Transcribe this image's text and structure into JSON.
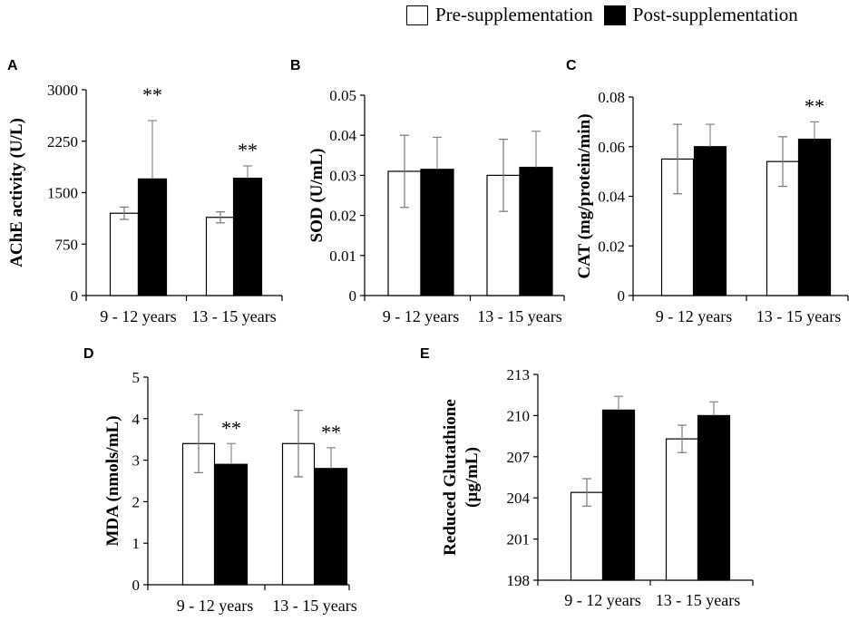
{
  "legend": {
    "pre_label": "Pre-supplementation",
    "post_label": "Post-supplementation",
    "pre_color": "#ffffff",
    "post_color": "#000000"
  },
  "panels": {
    "A": "A",
    "B": "B",
    "C": "C",
    "D": "D",
    "E": "E"
  },
  "chart_data": [
    {
      "panel": "A",
      "type": "bar",
      "ylabel": "AChE activity (U/L)",
      "categories": [
        "9 - 12 years",
        "13 - 15 years"
      ],
      "ylim": [
        0,
        3000
      ],
      "yticks": [
        "0",
        "750",
        "1500",
        "2250",
        "3000"
      ],
      "series": [
        {
          "name": "Pre-supplementation",
          "values": [
            1200,
            1140
          ],
          "errors": [
            90,
            80
          ]
        },
        {
          "name": "Post-supplementation",
          "values": [
            1700,
            1710
          ],
          "errors": [
            850,
            180
          ]
        }
      ],
      "significance": [
        {
          "category": 0,
          "series": 1,
          "label": "**"
        },
        {
          "category": 1,
          "series": 1,
          "label": "**"
        }
      ]
    },
    {
      "panel": "B",
      "type": "bar",
      "ylabel": "SOD (U/mL)",
      "categories": [
        "9 - 12 years",
        "13 - 15 years"
      ],
      "ylim": [
        0,
        0.05
      ],
      "yticks": [
        "0",
        "0.01",
        "0.02",
        "0.03",
        "0.04",
        "0.05"
      ],
      "series": [
        {
          "name": "Pre-supplementation",
          "values": [
            0.031,
            0.03
          ],
          "errors": [
            0.009,
            0.009
          ]
        },
        {
          "name": "Post-supplementation",
          "values": [
            0.0315,
            0.032
          ],
          "errors": [
            0.008,
            0.009
          ]
        }
      ],
      "significance": []
    },
    {
      "panel": "C",
      "type": "bar",
      "ylabel": "CAT (mg/protein/min)",
      "categories": [
        "9 - 12 years",
        "13 - 15 years"
      ],
      "ylim": [
        0,
        0.08
      ],
      "yticks": [
        "0",
        "0.02",
        "0.04",
        "0.06",
        "0.08"
      ],
      "series": [
        {
          "name": "Pre-supplementation",
          "values": [
            0.055,
            0.054
          ],
          "errors": [
            0.014,
            0.01
          ]
        },
        {
          "name": "Post-supplementation",
          "values": [
            0.06,
            0.063
          ],
          "errors": [
            0.009,
            0.007
          ]
        }
      ],
      "significance": [
        {
          "category": 1,
          "series": 1,
          "label": "**"
        }
      ]
    },
    {
      "panel": "D",
      "type": "bar",
      "ylabel": "MDA (nmols/mL)",
      "categories": [
        "9 - 12 years",
        "13 - 15 years"
      ],
      "ylim": [
        0,
        5
      ],
      "yticks": [
        "0",
        "1",
        "2",
        "3",
        "4",
        "5"
      ],
      "series": [
        {
          "name": "Pre-supplementation",
          "values": [
            3.4,
            3.4
          ],
          "errors": [
            0.7,
            0.8
          ]
        },
        {
          "name": "Post-supplementation",
          "values": [
            2.9,
            2.8
          ],
          "errors": [
            0.5,
            0.5
          ]
        }
      ],
      "significance": [
        {
          "category": 0,
          "series": 1,
          "label": "**"
        },
        {
          "category": 1,
          "series": 1,
          "label": "**"
        }
      ]
    },
    {
      "panel": "E",
      "type": "bar",
      "ylabel": [
        "Reduced Glutathione",
        "(µg/mL)"
      ],
      "categories": [
        "9 - 12 years",
        "13 - 15 years"
      ],
      "ylim": [
        198,
        213
      ],
      "yticks": [
        "198",
        "201",
        "204",
        "207",
        "210",
        "213"
      ],
      "series": [
        {
          "name": "Pre-supplementation",
          "values": [
            204.4,
            208.3
          ],
          "errors": [
            1.0,
            1.0
          ]
        },
        {
          "name": "Post-supplementation",
          "values": [
            210.4,
            210.0
          ],
          "errors": [
            1.0,
            1.0
          ]
        }
      ],
      "significance": []
    }
  ]
}
